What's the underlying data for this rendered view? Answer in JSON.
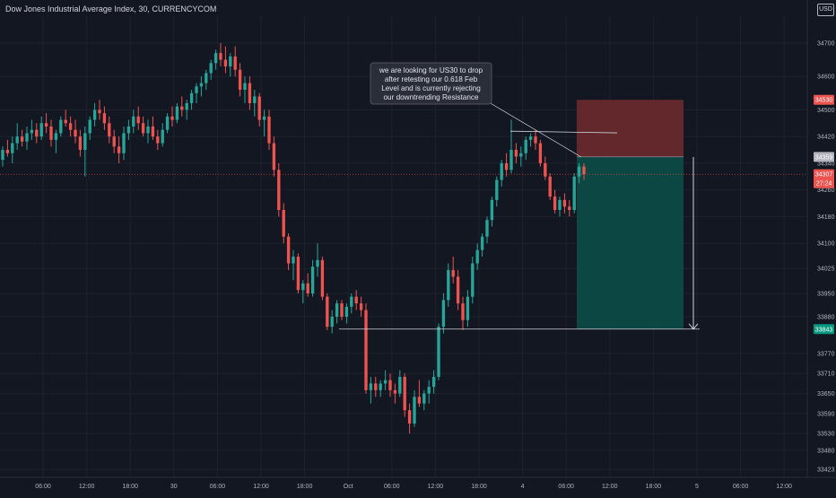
{
  "chart_data": {
    "type": "candlestick",
    "title": "Dow Jones Industrial Average Index, 30, CURRENCYCOM",
    "currency": "USD",
    "y_ticks": [
      34700,
      34600,
      34500,
      34420,
      34340,
      34260,
      34180,
      34100,
      34025,
      33950,
      33880,
      33770,
      33710,
      33650,
      33590,
      33530,
      33480,
      33423
    ],
    "x_ticks": [
      "06:00",
      "12:00",
      "18:00",
      "30",
      "06:00",
      "12:00",
      "18:00",
      "Oct",
      "06:00",
      "12:00",
      "18:00",
      "4",
      "06:00",
      "12:00",
      "18:00",
      "5",
      "06:00",
      "12:00"
    ],
    "price_labels": [
      {
        "value": 34530,
        "text": "34530",
        "color": "#ef5350"
      },
      {
        "value": 34359,
        "text": "34359",
        "color": "#b2b5be"
      },
      {
        "value": 34307,
        "text": "34307",
        "color": "#ef5350"
      },
      {
        "value": 34307,
        "text": "27:24",
        "color": "#ef5350"
      },
      {
        "value": 33843,
        "text": "33843",
        "color": "#089981"
      }
    ],
    "current_price": 34307,
    "annotation": {
      "lines": [
        "we are looking for US30 to drop",
        "after retesting our 0.618 Feb",
        "Level and is currently rejecting",
        "our downtrending Resistance"
      ]
    },
    "trade_box": {
      "entry": 34359,
      "stop": 34530,
      "target": 33843,
      "risk_color": "#6b2a2e",
      "reward_color": "#0c4a46"
    },
    "resistance_line": {
      "from_price": 34436,
      "to_price": 34431
    },
    "support_line": {
      "price": 33843
    },
    "colors": {
      "up": "#26a69a",
      "down": "#ef5350",
      "background": "#131722",
      "grid": "#1e222d",
      "axis_text": "#b2b5be"
    },
    "candles": [
      [
        34350,
        34390,
        34330,
        34380
      ],
      [
        34380,
        34410,
        34360,
        34370
      ],
      [
        34370,
        34420,
        34340,
        34400
      ],
      [
        34400,
        34460,
        34380,
        34420
      ],
      [
        34420,
        34440,
        34390,
        34405
      ],
      [
        34405,
        34450,
        34380,
        34430
      ],
      [
        34430,
        34470,
        34410,
        34440
      ],
      [
        34440,
        34460,
        34400,
        34420
      ],
      [
        34420,
        34480,
        34410,
        34460
      ],
      [
        34460,
        34490,
        34430,
        34450
      ],
      [
        34450,
        34470,
        34390,
        34410
      ],
      [
        34410,
        34440,
        34370,
        34430
      ],
      [
        34430,
        34480,
        34420,
        34470
      ],
      [
        34470,
        34500,
        34450,
        34460
      ],
      [
        34460,
        34480,
        34420,
        34440
      ],
      [
        34440,
        34470,
        34400,
        34420
      ],
      [
        34420,
        34440,
        34360,
        34380
      ],
      [
        34380,
        34450,
        34300,
        34430
      ],
      [
        34430,
        34480,
        34410,
        34470
      ],
      [
        34470,
        34520,
        34450,
        34500
      ],
      [
        34500,
        34530,
        34470,
        34490
      ],
      [
        34490,
        34510,
        34440,
        34460
      ],
      [
        34460,
        34480,
        34400,
        34420
      ],
      [
        34420,
        34440,
        34370,
        34390
      ],
      [
        34390,
        34420,
        34340,
        34370
      ],
      [
        34370,
        34450,
        34350,
        34430
      ],
      [
        34430,
        34470,
        34410,
        34450
      ],
      [
        34450,
        34500,
        34430,
        34480
      ],
      [
        34480,
        34510,
        34440,
        34460
      ],
      [
        34460,
        34480,
        34420,
        34430
      ],
      [
        34430,
        34470,
        34400,
        34450
      ],
      [
        34450,
        34480,
        34410,
        34420
      ],
      [
        34420,
        34440,
        34380,
        34400
      ],
      [
        34400,
        34460,
        34390,
        34440
      ],
      [
        34440,
        34490,
        34430,
        34480
      ],
      [
        34480,
        34510,
        34450,
        34470
      ],
      [
        34470,
        34520,
        34460,
        34510
      ],
      [
        34510,
        34540,
        34480,
        34500
      ],
      [
        34500,
        34530,
        34470,
        34520
      ],
      [
        34520,
        34560,
        34500,
        34550
      ],
      [
        34550,
        34580,
        34520,
        34570
      ],
      [
        34570,
        34600,
        34540,
        34580
      ],
      [
        34580,
        34620,
        34560,
        34610
      ],
      [
        34610,
        34650,
        34590,
        34640
      ],
      [
        34640,
        34680,
        34620,
        34670
      ],
      [
        34670,
        34700,
        34630,
        34650
      ],
      [
        34650,
        34690,
        34610,
        34630
      ],
      [
        34630,
        34670,
        34600,
        34660
      ],
      [
        34660,
        34690,
        34600,
        34620
      ],
      [
        34620,
        34640,
        34540,
        34560
      ],
      [
        34560,
        34600,
        34520,
        34580
      ],
      [
        34580,
        34600,
        34500,
        34520
      ],
      [
        34520,
        34560,
        34480,
        34540
      ],
      [
        34540,
        34550,
        34450,
        34470
      ],
      [
        34470,
        34500,
        34420,
        34480
      ],
      [
        34480,
        34500,
        34380,
        34400
      ],
      [
        34400,
        34420,
        34300,
        34320
      ],
      [
        34320,
        34340,
        34180,
        34200
      ],
      [
        34200,
        34220,
        34100,
        34120
      ],
      [
        34120,
        34130,
        34020,
        34040
      ],
      [
        34040,
        34080,
        33990,
        34060
      ],
      [
        34060,
        34070,
        33950,
        33960
      ],
      [
        33960,
        33990,
        33920,
        33980
      ],
      [
        33980,
        34010,
        33940,
        33950
      ],
      [
        33950,
        34050,
        33940,
        34030
      ],
      [
        34030,
        34100,
        34000,
        34050
      ],
      [
        34050,
        34060,
        33930,
        33940
      ],
      [
        33940,
        33950,
        33840,
        33850
      ],
      [
        33850,
        33900,
        33830,
        33880
      ],
      [
        33880,
        33930,
        33860,
        33920
      ],
      [
        33920,
        33930,
        33870,
        33880
      ],
      [
        33880,
        33920,
        33860,
        33910
      ],
      [
        33910,
        33950,
        33890,
        33940
      ],
      [
        33940,
        33960,
        33900,
        33920
      ],
      [
        33920,
        33940,
        33880,
        33900
      ],
      [
        33900,
        33920,
        33650,
        33660
      ],
      [
        33660,
        33700,
        33620,
        33680
      ],
      [
        33680,
        33700,
        33640,
        33660
      ],
      [
        33660,
        33690,
        33640,
        33680
      ],
      [
        33680,
        33720,
        33660,
        33690
      ],
      [
        33690,
        33710,
        33640,
        33660
      ],
      [
        33660,
        33680,
        33620,
        33650
      ],
      [
        33650,
        33720,
        33640,
        33700
      ],
      [
        33700,
        33710,
        33580,
        33600
      ],
      [
        33600,
        33620,
        33530,
        33560
      ],
      [
        33560,
        33660,
        33550,
        33640
      ],
      [
        33640,
        33690,
        33610,
        33620
      ],
      [
        33620,
        33660,
        33600,
        33650
      ],
      [
        33650,
        33690,
        33620,
        33670
      ],
      [
        33670,
        33720,
        33650,
        33700
      ],
      [
        33700,
        33860,
        33690,
        33850
      ],
      [
        33850,
        33950,
        33830,
        33930
      ],
      [
        33930,
        34040,
        33910,
        34020
      ],
      [
        34020,
        34060,
        33980,
        34000
      ],
      [
        34000,
        34020,
        33900,
        33920
      ],
      [
        33920,
        33940,
        33840,
        33870
      ],
      [
        33870,
        33960,
        33850,
        33940
      ],
      [
        33940,
        34060,
        33920,
        34040
      ],
      [
        34040,
        34100,
        34020,
        34080
      ],
      [
        34080,
        34130,
        34060,
        34120
      ],
      [
        34120,
        34180,
        34100,
        34170
      ],
      [
        34170,
        34240,
        34150,
        34230
      ],
      [
        34230,
        34300,
        34210,
        34290
      ],
      [
        34290,
        34350,
        34270,
        34340
      ],
      [
        34340,
        34370,
        34300,
        34320
      ],
      [
        34320,
        34470,
        34310,
        34380
      ],
      [
        34380,
        34400,
        34340,
        34360
      ],
      [
        34360,
        34390,
        34330,
        34370
      ],
      [
        34370,
        34420,
        34350,
        34410
      ],
      [
        34410,
        34430,
        34390,
        34420
      ],
      [
        34420,
        34440,
        34380,
        34400
      ],
      [
        34400,
        34410,
        34330,
        34340
      ],
      [
        34340,
        34360,
        34290,
        34300
      ],
      [
        34300,
        34310,
        34230,
        34240
      ],
      [
        34240,
        34260,
        34190,
        34200
      ],
      [
        34200,
        34240,
        34180,
        34230
      ],
      [
        34230,
        34250,
        34190,
        34210
      ],
      [
        34210,
        34230,
        34180,
        34200
      ],
      [
        34200,
        34310,
        34190,
        34300
      ],
      [
        34300,
        34340,
        34280,
        34330
      ],
      [
        34330,
        34340,
        34290,
        34307
      ]
    ]
  }
}
